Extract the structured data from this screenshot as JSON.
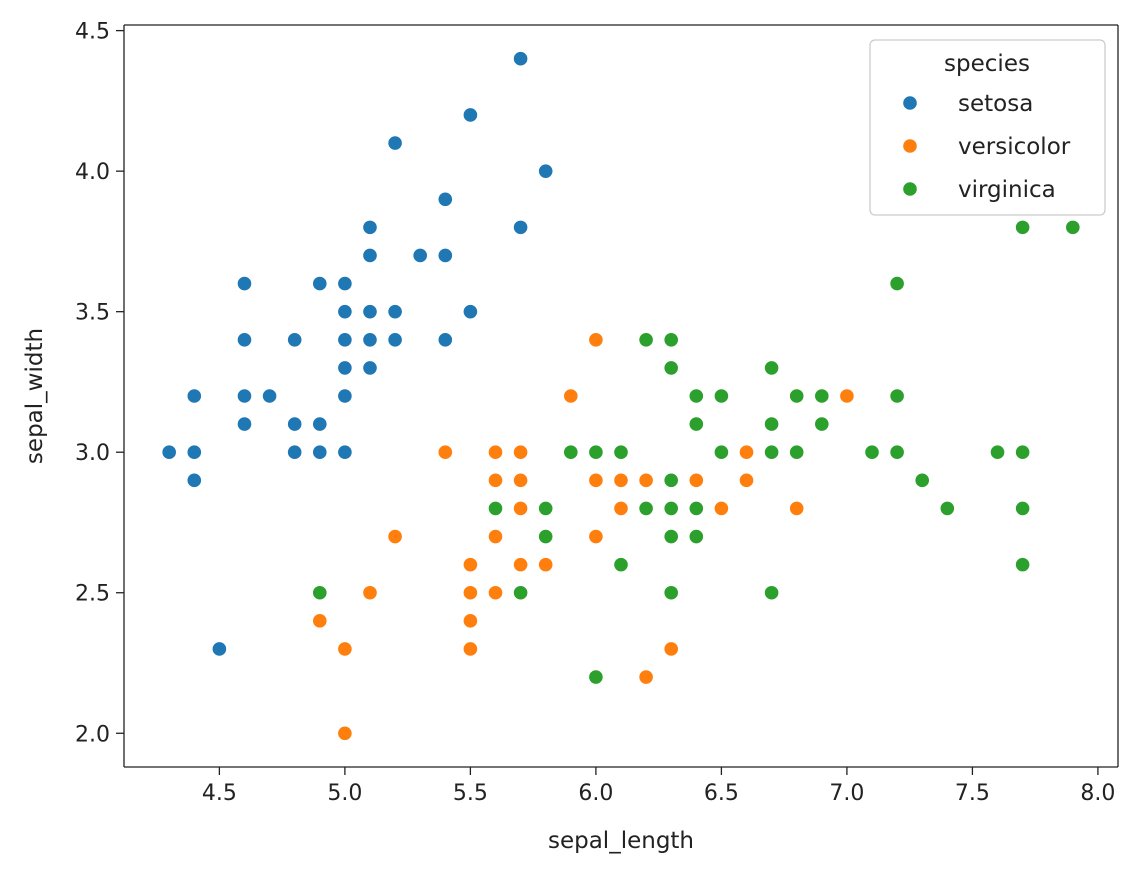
{
  "chart_data": {
    "type": "scatter",
    "xlabel": "sepal_length",
    "ylabel": "sepal_width",
    "xlim": [
      4.12,
      8.08
    ],
    "ylim": [
      1.88,
      4.52
    ],
    "xticks": [
      "4.5",
      "5.0",
      "5.5",
      "6.0",
      "6.5",
      "7.0",
      "7.5",
      "8.0"
    ],
    "yticks": [
      "2.0",
      "2.5",
      "3.0",
      "3.5",
      "4.0",
      "4.5"
    ],
    "grid": false,
    "legend": {
      "title": "species",
      "placement": "top-right"
    },
    "series": [
      {
        "name": "setosa",
        "color": "#1f77b4",
        "points": [
          [
            5.1,
            3.5
          ],
          [
            4.9,
            3.0
          ],
          [
            4.7,
            3.2
          ],
          [
            4.6,
            3.1
          ],
          [
            5.0,
            3.6
          ],
          [
            5.4,
            3.9
          ],
          [
            4.6,
            3.4
          ],
          [
            5.0,
            3.4
          ],
          [
            4.4,
            2.9
          ],
          [
            4.9,
            3.1
          ],
          [
            5.4,
            3.7
          ],
          [
            4.8,
            3.4
          ],
          [
            4.8,
            3.0
          ],
          [
            4.3,
            3.0
          ],
          [
            5.8,
            4.0
          ],
          [
            5.7,
            4.4
          ],
          [
            5.4,
            3.9
          ],
          [
            5.1,
            3.5
          ],
          [
            5.7,
            3.8
          ],
          [
            5.1,
            3.8
          ],
          [
            5.4,
            3.4
          ],
          [
            5.1,
            3.7
          ],
          [
            4.6,
            3.6
          ],
          [
            5.1,
            3.3
          ],
          [
            4.8,
            3.4
          ],
          [
            5.0,
            3.0
          ],
          [
            5.0,
            3.4
          ],
          [
            5.2,
            3.5
          ],
          [
            5.2,
            3.4
          ],
          [
            4.7,
            3.2
          ],
          [
            4.8,
            3.1
          ],
          [
            5.4,
            3.4
          ],
          [
            5.2,
            4.1
          ],
          [
            5.5,
            4.2
          ],
          [
            4.9,
            3.1
          ],
          [
            5.0,
            3.2
          ],
          [
            5.5,
            3.5
          ],
          [
            4.9,
            3.6
          ],
          [
            4.4,
            3.0
          ],
          [
            5.1,
            3.4
          ],
          [
            5.0,
            3.5
          ],
          [
            4.5,
            2.3
          ],
          [
            4.4,
            3.2
          ],
          [
            5.0,
            3.5
          ],
          [
            5.1,
            3.8
          ],
          [
            4.8,
            3.0
          ],
          [
            5.1,
            3.8
          ],
          [
            4.6,
            3.2
          ],
          [
            5.3,
            3.7
          ],
          [
            5.0,
            3.3
          ]
        ]
      },
      {
        "name": "versicolor",
        "color": "#ff7f0e",
        "points": [
          [
            7.0,
            3.2
          ],
          [
            6.4,
            3.2
          ],
          [
            6.9,
            3.1
          ],
          [
            5.5,
            2.3
          ],
          [
            6.5,
            2.8
          ],
          [
            5.7,
            2.8
          ],
          [
            6.3,
            3.3
          ],
          [
            4.9,
            2.4
          ],
          [
            6.6,
            2.9
          ],
          [
            5.2,
            2.7
          ],
          [
            5.0,
            2.0
          ],
          [
            5.9,
            3.0
          ],
          [
            6.0,
            2.2
          ],
          [
            6.1,
            2.9
          ],
          [
            5.6,
            2.9
          ],
          [
            6.7,
            3.1
          ],
          [
            5.6,
            3.0
          ],
          [
            5.8,
            2.7
          ],
          [
            6.2,
            2.2
          ],
          [
            5.6,
            2.5
          ],
          [
            5.9,
            3.2
          ],
          [
            6.1,
            2.8
          ],
          [
            6.3,
            2.5
          ],
          [
            6.1,
            2.8
          ],
          [
            6.4,
            2.9
          ],
          [
            6.6,
            3.0
          ],
          [
            6.8,
            2.8
          ],
          [
            6.7,
            3.0
          ],
          [
            6.0,
            2.9
          ],
          [
            5.7,
            2.6
          ],
          [
            5.5,
            2.4
          ],
          [
            5.5,
            2.4
          ],
          [
            5.8,
            2.7
          ],
          [
            6.0,
            2.7
          ],
          [
            5.4,
            3.0
          ],
          [
            6.0,
            3.4
          ],
          [
            6.7,
            3.1
          ],
          [
            6.3,
            2.3
          ],
          [
            5.6,
            3.0
          ],
          [
            5.5,
            2.5
          ],
          [
            5.5,
            2.6
          ],
          [
            6.1,
            3.0
          ],
          [
            5.8,
            2.6
          ],
          [
            5.0,
            2.3
          ],
          [
            5.6,
            2.7
          ],
          [
            5.7,
            3.0
          ],
          [
            5.7,
            2.9
          ],
          [
            6.2,
            2.9
          ],
          [
            5.1,
            2.5
          ],
          [
            5.7,
            2.8
          ]
        ]
      },
      {
        "name": "virginica",
        "color": "#2ca02c",
        "points": [
          [
            6.3,
            3.3
          ],
          [
            5.8,
            2.7
          ],
          [
            7.1,
            3.0
          ],
          [
            6.3,
            2.9
          ],
          [
            6.5,
            3.0
          ],
          [
            7.6,
            3.0
          ],
          [
            4.9,
            2.5
          ],
          [
            7.3,
            2.9
          ],
          [
            6.7,
            2.5
          ],
          [
            7.2,
            3.6
          ],
          [
            6.5,
            3.2
          ],
          [
            6.4,
            2.7
          ],
          [
            6.8,
            3.0
          ],
          [
            5.7,
            2.5
          ],
          [
            5.8,
            2.8
          ],
          [
            6.4,
            3.2
          ],
          [
            6.5,
            3.0
          ],
          [
            7.7,
            3.8
          ],
          [
            7.7,
            2.6
          ],
          [
            6.0,
            2.2
          ],
          [
            6.9,
            3.2
          ],
          [
            5.6,
            2.8
          ],
          [
            7.7,
            2.8
          ],
          [
            6.3,
            2.7
          ],
          [
            6.7,
            3.3
          ],
          [
            7.2,
            3.2
          ],
          [
            6.2,
            2.8
          ],
          [
            6.1,
            3.0
          ],
          [
            6.4,
            2.8
          ],
          [
            7.2,
            3.0
          ],
          [
            7.4,
            2.8
          ],
          [
            7.9,
            3.8
          ],
          [
            6.4,
            2.8
          ],
          [
            6.3,
            2.8
          ],
          [
            6.1,
            2.6
          ],
          [
            7.7,
            3.0
          ],
          [
            6.3,
            3.4
          ],
          [
            6.4,
            3.1
          ],
          [
            6.0,
            3.0
          ],
          [
            6.9,
            3.1
          ],
          [
            6.7,
            3.1
          ],
          [
            6.9,
            3.1
          ],
          [
            5.8,
            2.7
          ],
          [
            6.8,
            3.2
          ],
          [
            6.7,
            3.3
          ],
          [
            6.7,
            3.0
          ],
          [
            6.3,
            2.5
          ],
          [
            6.5,
            3.0
          ],
          [
            6.2,
            3.4
          ],
          [
            5.9,
            3.0
          ]
        ]
      }
    ]
  }
}
